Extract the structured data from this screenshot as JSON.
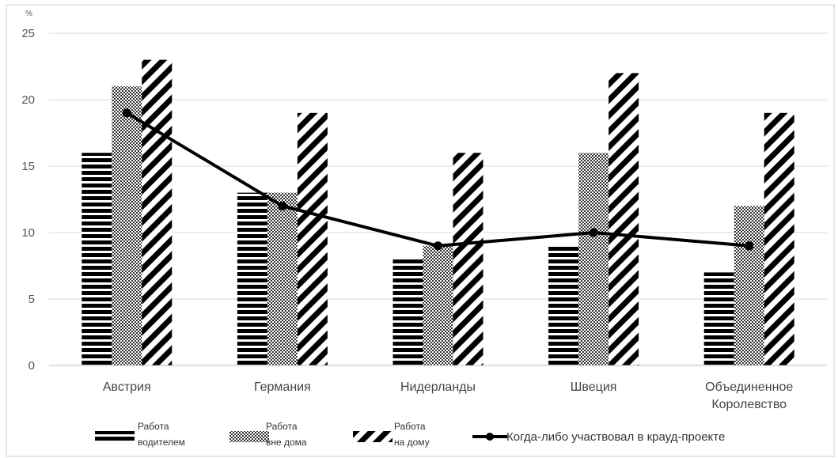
{
  "chart_data": {
    "type": "bar",
    "unit_label": "%",
    "ylim": [
      0,
      25
    ],
    "yticks": [
      "0",
      "5",
      "10",
      "15",
      "20",
      "25"
    ],
    "grid": true,
    "legend_position": "bottom",
    "categories": [
      [
        "Австрия"
      ],
      [
        "Германия"
      ],
      [
        "Нидерланды"
      ],
      [
        "Швеция"
      ],
      [
        "Объединенное",
        "Королевство"
      ]
    ],
    "series": [
      {
        "name": [
          "Работа",
          "водителем"
        ],
        "type": "bar",
        "pattern": "horizontal-lines",
        "values": [
          16,
          13,
          8,
          9,
          7
        ]
      },
      {
        "name": [
          "Работа",
          "вне дома"
        ],
        "type": "bar",
        "pattern": "dots",
        "values": [
          21,
          13,
          9,
          16,
          12
        ]
      },
      {
        "name": [
          "Работа",
          "на дому"
        ],
        "type": "bar",
        "pattern": "diagonal-lines",
        "values": [
          23,
          19,
          16,
          22,
          19
        ]
      },
      {
        "name": [
          "Когда-либо участвовал в крауд-проекте"
        ],
        "type": "line",
        "values": [
          19,
          12,
          9,
          10,
          9
        ]
      }
    ],
    "colors": {
      "marks": "#000000",
      "grid": "#d9d9d9",
      "text": "#444444"
    }
  }
}
